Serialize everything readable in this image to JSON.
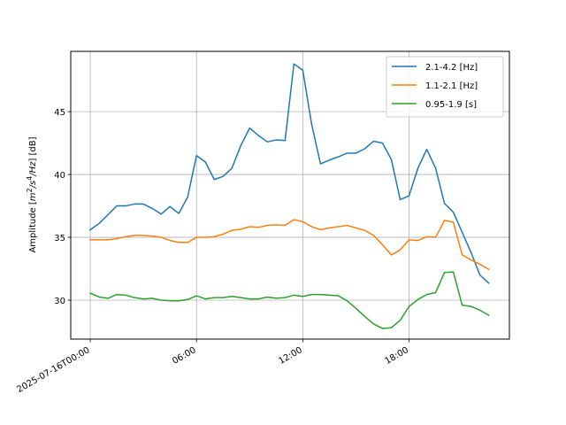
{
  "chart_data": {
    "type": "line",
    "x_type": "datetime",
    "x": [
      "2025-07-16T00:00",
      "2025-07-16T00:30",
      "2025-07-16T01:00",
      "2025-07-16T01:30",
      "2025-07-16T02:00",
      "2025-07-16T02:30",
      "2025-07-16T03:00",
      "2025-07-16T03:30",
      "2025-07-16T04:00",
      "2025-07-16T04:30",
      "2025-07-16T05:00",
      "2025-07-16T05:30",
      "2025-07-16T06:00",
      "2025-07-16T06:30",
      "2025-07-16T07:00",
      "2025-07-16T07:30",
      "2025-07-16T08:00",
      "2025-07-16T08:30",
      "2025-07-16T09:00",
      "2025-07-16T09:30",
      "2025-07-16T10:00",
      "2025-07-16T10:30",
      "2025-07-16T11:00",
      "2025-07-16T11:30",
      "2025-07-16T12:00",
      "2025-07-16T12:30",
      "2025-07-16T13:00",
      "2025-07-16T13:30",
      "2025-07-16T14:00",
      "2025-07-16T14:30",
      "2025-07-16T15:00",
      "2025-07-16T15:30",
      "2025-07-16T16:00",
      "2025-07-16T16:30",
      "2025-07-16T17:00",
      "2025-07-16T17:30",
      "2025-07-16T18:00",
      "2025-07-16T18:30",
      "2025-07-16T19:00",
      "2025-07-16T19:30",
      "2025-07-16T20:00",
      "2025-07-16T20:30",
      "2025-07-16T21:00",
      "2025-07-16T21:30",
      "2025-07-16T22:00",
      "2025-07-16T22:30"
    ],
    "series": [
      {
        "name": "2.1-4.2 [Hz]",
        "color": "#1f77b4",
        "values": [
          35.6,
          36.1,
          36.8,
          37.5,
          37.5,
          37.65,
          37.65,
          37.3,
          36.85,
          37.45,
          36.9,
          38.2,
          41.5,
          41.0,
          39.6,
          39.85,
          40.5,
          42.3,
          43.7,
          43.1,
          42.6,
          42.75,
          42.7,
          48.8,
          48.3,
          44.0,
          40.85,
          41.15,
          41.4,
          41.7,
          41.7,
          42.05,
          42.65,
          42.5,
          41.2,
          38.0,
          38.3,
          40.5,
          42.0,
          40.5,
          37.7,
          37.0,
          35.4,
          33.8,
          32.0,
          31.35
        ]
      },
      {
        "name": "1.1-2.1 [Hz]",
        "color": "#ff7f0e",
        "values": [
          34.8,
          34.8,
          34.8,
          34.9,
          35.05,
          35.15,
          35.15,
          35.1,
          35.0,
          34.75,
          34.6,
          34.6,
          35.0,
          35.0,
          35.05,
          35.25,
          35.55,
          35.65,
          35.85,
          35.8,
          35.95,
          36.0,
          35.95,
          36.4,
          36.25,
          35.85,
          35.6,
          35.75,
          35.85,
          35.95,
          35.75,
          35.55,
          35.15,
          34.4,
          33.6,
          34.0,
          34.8,
          34.75,
          35.05,
          35.0,
          36.35,
          36.2,
          33.6,
          33.2,
          32.85,
          32.45
        ]
      },
      {
        "name": "0.95-1.9 [s]",
        "color": "#2ca02c",
        "values": [
          30.55,
          30.25,
          30.15,
          30.45,
          30.4,
          30.2,
          30.1,
          30.15,
          30.0,
          29.95,
          29.95,
          30.05,
          30.35,
          30.1,
          30.2,
          30.2,
          30.3,
          30.2,
          30.1,
          30.1,
          30.25,
          30.15,
          30.2,
          30.4,
          30.3,
          30.45,
          30.45,
          30.4,
          30.35,
          29.95,
          29.35,
          28.7,
          28.1,
          27.75,
          27.8,
          28.4,
          29.5,
          30.05,
          30.45,
          30.6,
          32.2,
          32.25,
          29.6,
          29.5,
          29.2,
          28.8
        ]
      }
    ],
    "xlabel": "",
    "ylabel": "Amplitude [m²/s⁴/Hz] [dB]",
    "ylabel_parts": {
      "pre": "Amplitude [",
      "base1": "m",
      "sup1": "2",
      "mid": "/s",
      "sup2": "4",
      "post": "/Hz",
      "end": "] [dB]"
    },
    "x_ticks": [
      {
        "value": "2025-07-16T00:00",
        "label": "2025-07-16T00:00"
      },
      {
        "value": "2025-07-16T06:00",
        "label": "06:00"
      },
      {
        "value": "2025-07-16T12:00",
        "label": "12:00"
      },
      {
        "value": "2025-07-16T18:00",
        "label": "18:00"
      }
    ],
    "y_ticks": [
      30,
      35,
      40,
      45
    ],
    "xlim": [
      "2025-07-15T22:54",
      "2025-07-16T23:40"
    ],
    "ylim": [
      26.9,
      49.8
    ],
    "grid": true,
    "legend_position": "top-right"
  }
}
